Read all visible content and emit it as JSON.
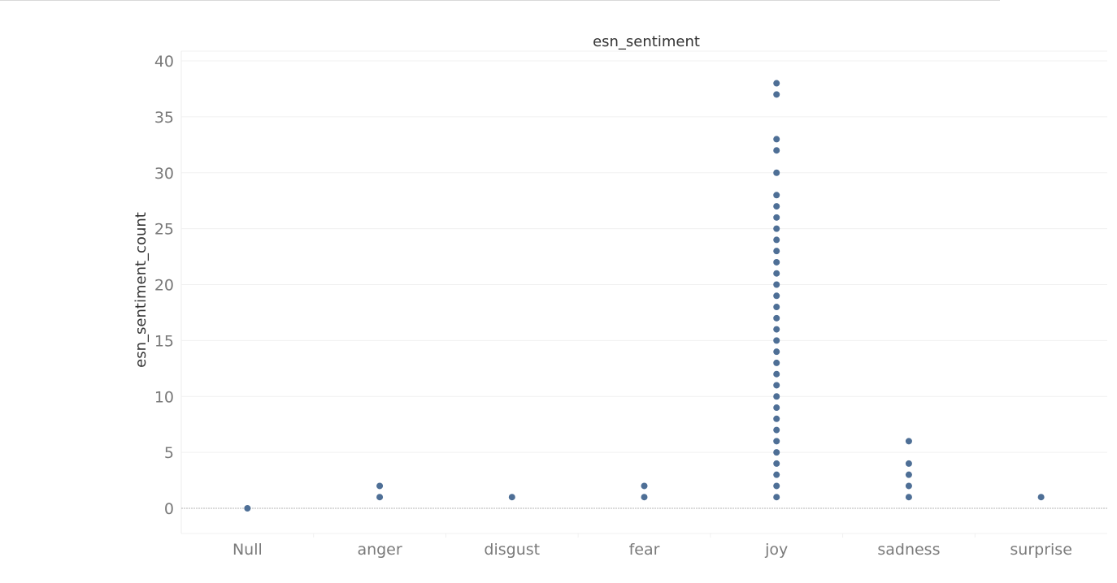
{
  "chart_data": {
    "type": "scatter",
    "title": "esn_sentiment",
    "xlabel": "",
    "ylabel": "esn_sentiment_count",
    "categories": [
      "Null",
      "anger",
      "disgust",
      "fear",
      "joy",
      "sadness",
      "surprise"
    ],
    "ylim": [
      -2,
      40.5
    ],
    "yticks": [
      0,
      5,
      10,
      15,
      20,
      25,
      30,
      35,
      40
    ],
    "grid": true,
    "legend": "none",
    "color": "#4e6f96",
    "points": [
      {
        "category": "Null",
        "values": [
          0
        ]
      },
      {
        "category": "anger",
        "values": [
          1,
          2
        ]
      },
      {
        "category": "disgust",
        "values": [
          1
        ]
      },
      {
        "category": "fear",
        "values": [
          1,
          2
        ]
      },
      {
        "category": "joy",
        "values": [
          1,
          2,
          3,
          4,
          5,
          6,
          7,
          8,
          9,
          10,
          11,
          12,
          13,
          14,
          15,
          16,
          17,
          18,
          19,
          20,
          21,
          22,
          23,
          24,
          25,
          26,
          27,
          28,
          30,
          32,
          33,
          37,
          38
        ]
      },
      {
        "category": "sadness",
        "values": [
          1,
          2,
          3,
          4,
          6
        ]
      },
      {
        "category": "surprise",
        "values": [
          1
        ]
      }
    ]
  }
}
